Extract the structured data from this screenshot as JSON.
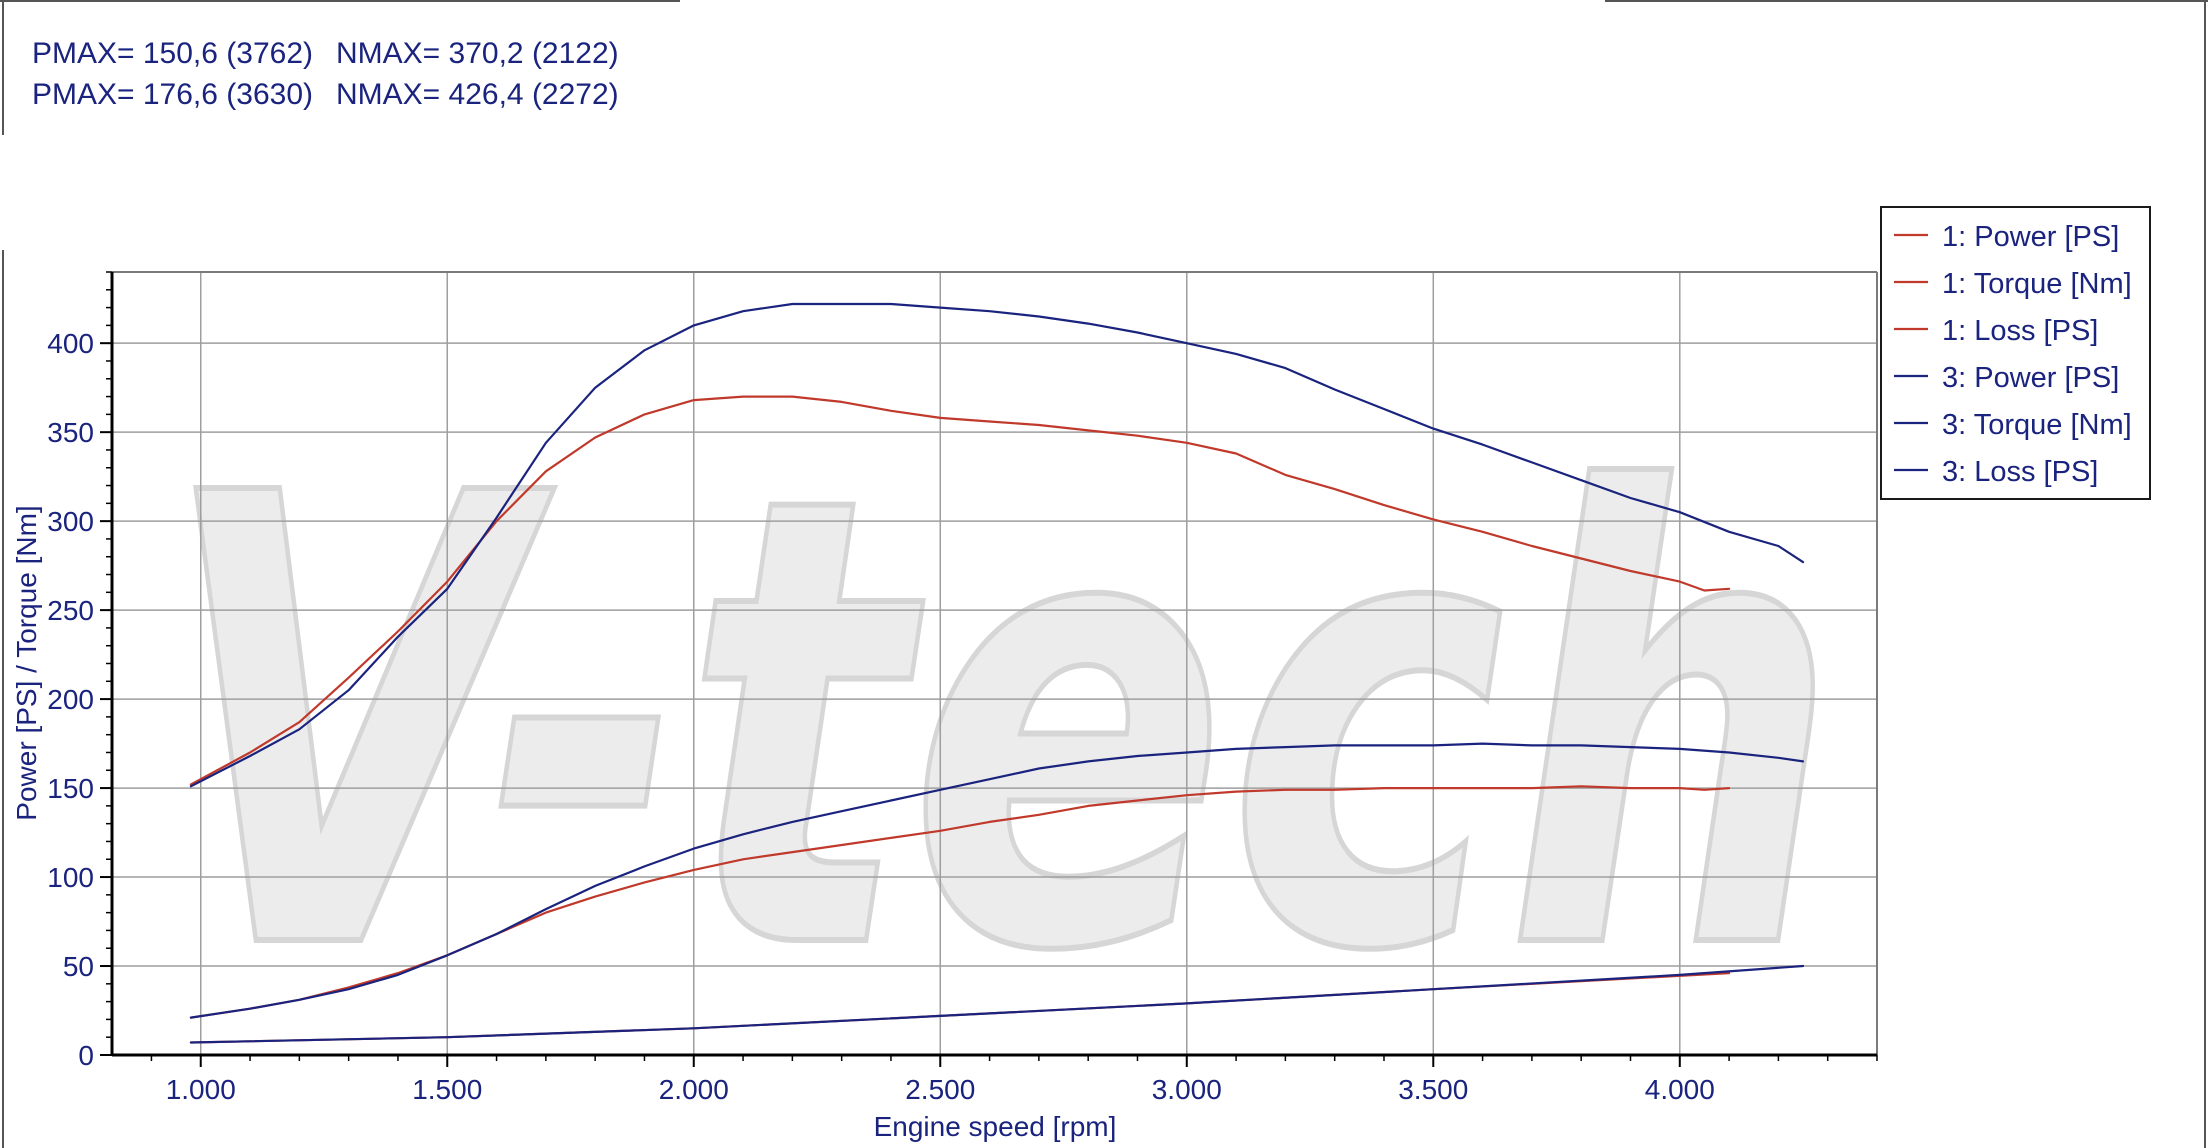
{
  "stats": [
    {
      "pmax": "PMAX= 150,6 (3762)",
      "nmax": "NMAX= 370,2 (2122)"
    },
    {
      "pmax": "PMAX= 176,6 (3630)",
      "nmax": "NMAX= 426,4 (2272)"
    }
  ],
  "watermark": "V-tech",
  "colors": {
    "series1": "#c0392b",
    "series3": "#1a237e",
    "text": "#1a237e",
    "grid": "#9e9e9e"
  },
  "chart_data": {
    "type": "line",
    "title": "",
    "xlabel": "Engine speed [rpm]",
    "ylabel": "Power [PS] / Torque [Nm]",
    "xlim": [
      820,
      4400
    ],
    "ylim": [
      0,
      440
    ],
    "x_ticks": [
      1000,
      1500,
      2000,
      2500,
      3000,
      3500,
      4000
    ],
    "x_tick_labels": [
      "1.000",
      "1.500",
      "2.000",
      "2.500",
      "3.000",
      "3.500",
      "4.000"
    ],
    "y_ticks": [
      0,
      50,
      100,
      150,
      200,
      250,
      300,
      350,
      400
    ],
    "y_tick_labels": [
      "0",
      "50",
      "100",
      "150",
      "200",
      "250",
      "300",
      "350",
      "400"
    ],
    "grid": true,
    "legend_position": "top-right",
    "series": [
      {
        "name": "1: Power [PS]",
        "color": "#c0392b",
        "points": [
          [
            980,
            21
          ],
          [
            1100,
            26
          ],
          [
            1200,
            31
          ],
          [
            1300,
            38
          ],
          [
            1400,
            46
          ],
          [
            1500,
            56
          ],
          [
            1600,
            68
          ],
          [
            1700,
            80
          ],
          [
            1800,
            89
          ],
          [
            1900,
            97
          ],
          [
            2000,
            104
          ],
          [
            2100,
            110
          ],
          [
            2200,
            114
          ],
          [
            2300,
            118
          ],
          [
            2400,
            122
          ],
          [
            2500,
            126
          ],
          [
            2600,
            131
          ],
          [
            2700,
            135
          ],
          [
            2800,
            140
          ],
          [
            2900,
            143
          ],
          [
            3000,
            146
          ],
          [
            3100,
            148
          ],
          [
            3200,
            149
          ],
          [
            3300,
            149
          ],
          [
            3400,
            150
          ],
          [
            3500,
            150
          ],
          [
            3600,
            150
          ],
          [
            3700,
            150
          ],
          [
            3800,
            151
          ],
          [
            3900,
            150
          ],
          [
            4000,
            150
          ],
          [
            4050,
            149
          ],
          [
            4100,
            150
          ]
        ]
      },
      {
        "name": "1: Torque [Nm]",
        "color": "#c0392b",
        "points": [
          [
            980,
            152
          ],
          [
            1100,
            170
          ],
          [
            1200,
            187
          ],
          [
            1300,
            212
          ],
          [
            1400,
            238
          ],
          [
            1500,
            266
          ],
          [
            1600,
            300
          ],
          [
            1700,
            328
          ],
          [
            1800,
            347
          ],
          [
            1900,
            360
          ],
          [
            2000,
            368
          ],
          [
            2100,
            370
          ],
          [
            2200,
            370
          ],
          [
            2300,
            367
          ],
          [
            2400,
            362
          ],
          [
            2500,
            358
          ],
          [
            2600,
            356
          ],
          [
            2700,
            354
          ],
          [
            2800,
            351
          ],
          [
            2900,
            348
          ],
          [
            3000,
            344
          ],
          [
            3100,
            338
          ],
          [
            3200,
            326
          ],
          [
            3300,
            318
          ],
          [
            3400,
            309
          ],
          [
            3500,
            301
          ],
          [
            3600,
            294
          ],
          [
            3700,
            286
          ],
          [
            3800,
            279
          ],
          [
            3900,
            272
          ],
          [
            4000,
            266
          ],
          [
            4050,
            261
          ],
          [
            4100,
            262
          ]
        ]
      },
      {
        "name": "1: Loss [PS]",
        "color": "#c0392b",
        "points": [
          [
            980,
            7
          ],
          [
            1500,
            10
          ],
          [
            2000,
            15
          ],
          [
            2500,
            22
          ],
          [
            3000,
            29
          ],
          [
            3500,
            37
          ],
          [
            4100,
            46
          ]
        ]
      },
      {
        "name": "3: Power [PS]",
        "color": "#1a237e",
        "points": [
          [
            980,
            21
          ],
          [
            1100,
            26
          ],
          [
            1200,
            31
          ],
          [
            1300,
            37
          ],
          [
            1400,
            45
          ],
          [
            1500,
            56
          ],
          [
            1600,
            68
          ],
          [
            1700,
            82
          ],
          [
            1800,
            95
          ],
          [
            1900,
            106
          ],
          [
            2000,
            116
          ],
          [
            2100,
            124
          ],
          [
            2200,
            131
          ],
          [
            2300,
            137
          ],
          [
            2400,
            143
          ],
          [
            2500,
            149
          ],
          [
            2600,
            155
          ],
          [
            2700,
            161
          ],
          [
            2800,
            165
          ],
          [
            2900,
            168
          ],
          [
            3000,
            170
          ],
          [
            3100,
            172
          ],
          [
            3200,
            173
          ],
          [
            3300,
            174
          ],
          [
            3400,
            174
          ],
          [
            3500,
            174
          ],
          [
            3600,
            175
          ],
          [
            3700,
            174
          ],
          [
            3800,
            174
          ],
          [
            3900,
            173
          ],
          [
            4000,
            172
          ],
          [
            4100,
            170
          ],
          [
            4200,
            167
          ],
          [
            4250,
            165
          ]
        ]
      },
      {
        "name": "3: Torque [Nm]",
        "color": "#1a237e",
        "points": [
          [
            980,
            151
          ],
          [
            1100,
            168
          ],
          [
            1200,
            183
          ],
          [
            1300,
            205
          ],
          [
            1400,
            235
          ],
          [
            1500,
            262
          ],
          [
            1600,
            302
          ],
          [
            1700,
            344
          ],
          [
            1800,
            375
          ],
          [
            1900,
            396
          ],
          [
            2000,
            410
          ],
          [
            2100,
            418
          ],
          [
            2200,
            422
          ],
          [
            2300,
            422
          ],
          [
            2400,
            422
          ],
          [
            2500,
            420
          ],
          [
            2600,
            418
          ],
          [
            2700,
            415
          ],
          [
            2800,
            411
          ],
          [
            2900,
            406
          ],
          [
            3000,
            400
          ],
          [
            3100,
            394
          ],
          [
            3200,
            386
          ],
          [
            3300,
            374
          ],
          [
            3400,
            363
          ],
          [
            3500,
            352
          ],
          [
            3600,
            343
          ],
          [
            3700,
            333
          ],
          [
            3800,
            323
          ],
          [
            3900,
            313
          ],
          [
            4000,
            305
          ],
          [
            4100,
            294
          ],
          [
            4200,
            286
          ],
          [
            4250,
            277
          ]
        ]
      },
      {
        "name": "3: Loss [PS]",
        "color": "#1a237e",
        "points": [
          [
            980,
            7
          ],
          [
            1500,
            10
          ],
          [
            2000,
            15
          ],
          [
            2500,
            22
          ],
          [
            3000,
            29
          ],
          [
            3500,
            37
          ],
          [
            4000,
            45
          ],
          [
            4250,
            50
          ]
        ]
      }
    ]
  }
}
